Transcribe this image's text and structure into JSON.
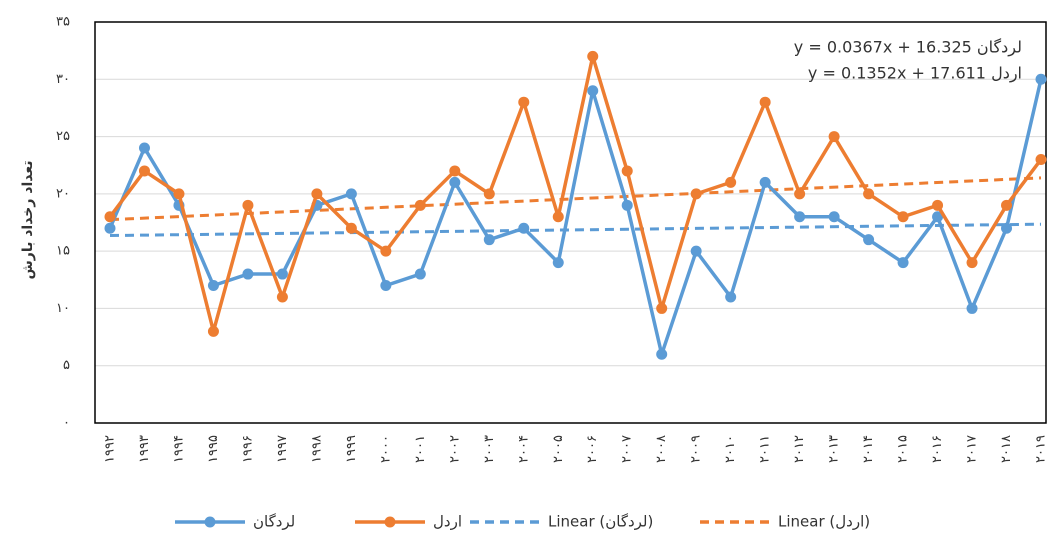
{
  "chart_data": {
    "type": "line",
    "y_label": "تعداد رخداد بارش",
    "categories": [
      "۱۹۹۲",
      "۱۹۹۳",
      "۱۹۹۴",
      "۱۹۹۵",
      "۱۹۹۶",
      "۱۹۹۷",
      "۱۹۹۸",
      "۱۹۹۹",
      "۲۰۰۰",
      "۲۰۰۱",
      "۲۰۰۲",
      "۲۰۰۳",
      "۲۰۰۴",
      "۲۰۰۵",
      "۲۰۰۶",
      "۲۰۰۷",
      "۲۰۰۸",
      "۲۰۰۹",
      "۲۰۱۰",
      "۲۰۱۱",
      "۲۰۱۲",
      "۲۰۱۳",
      "۲۰۱۴",
      "۲۰۱۵",
      "۲۰۱۶",
      "۲۰۱۷",
      "۲۰۱۸",
      "۲۰۱۹"
    ],
    "series": [
      {
        "name": "لردگان",
        "color": "#5b9bd5",
        "values": [
          17,
          24,
          19,
          12,
          13,
          13,
          19,
          20,
          12,
          13,
          21,
          16,
          17,
          14,
          29,
          19,
          6,
          15,
          11,
          21,
          18,
          18,
          16,
          14,
          18,
          10,
          17,
          30
        ]
      },
      {
        "name": "اردل",
        "color": "#ed7d31",
        "values": [
          18,
          22,
          20,
          8,
          19,
          11,
          20,
          17,
          15,
          19,
          22,
          20,
          28,
          18,
          32,
          22,
          10,
          20,
          21,
          28,
          20,
          25,
          20,
          18,
          19,
          14,
          19,
          23
        ]
      }
    ],
    "trendlines": [
      {
        "name": "Linear (لردگان)",
        "color": "#5b9bd5",
        "slope": 0.0367,
        "intercept": 16.325,
        "equation": "لردگان y = 0.0367x + 16.325"
      },
      {
        "name": "Linear (اردل)",
        "color": "#ed7d31",
        "slope": 0.1352,
        "intercept": 17.611,
        "equation": "اردل y = 0.1352x + 17.611"
      }
    ],
    "ylim": [
      0,
      35
    ],
    "yticks": [
      {
        "value": 0,
        "label": "۰"
      },
      {
        "value": 5,
        "label": "۵"
      },
      {
        "value": 10,
        "label": "۱۰"
      },
      {
        "value": 15,
        "label": "۱۵"
      },
      {
        "value": 20,
        "label": "۲۰"
      },
      {
        "value": 25,
        "label": "۲۵"
      },
      {
        "value": 30,
        "label": "۳۰"
      },
      {
        "value": 35,
        "label": "۳۵"
      }
    ],
    "grid": true
  }
}
